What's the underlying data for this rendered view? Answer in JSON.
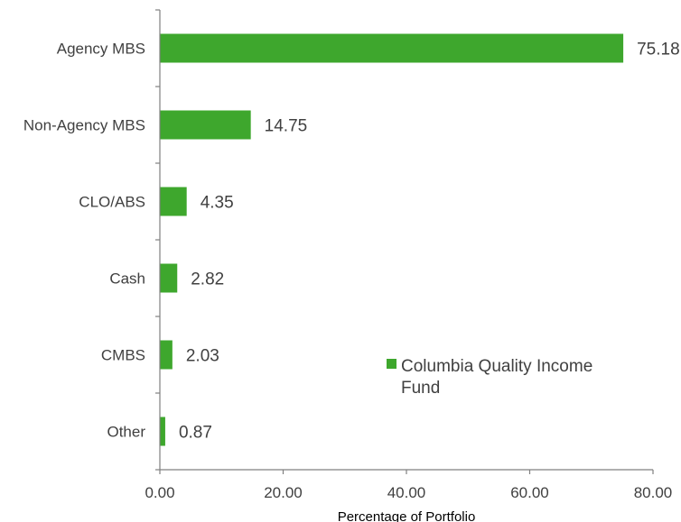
{
  "chart_data": {
    "type": "bar",
    "orientation": "horizontal",
    "categories": [
      "Agency MBS",
      "Non-Agency MBS",
      "CLO/ABS",
      "Cash",
      "CMBS",
      "Other"
    ],
    "series": [
      {
        "name": "Columbia Quality Income Fund",
        "values": [
          75.18,
          14.75,
          4.35,
          2.82,
          2.03,
          0.87
        ],
        "value_labels": [
          "75.18",
          "14.75",
          "4.35",
          "2.82",
          "2.03",
          "0.87"
        ],
        "color": "#3ea72d"
      }
    ],
    "xlabel": "Percentage of Portfolio",
    "ylabel": "",
    "xlim": [
      0,
      80
    ],
    "x_ticks": [
      0,
      20,
      40,
      60,
      80
    ],
    "x_tick_labels": [
      "0.00",
      "20.00",
      "40.00",
      "60.00",
      "80.00"
    ],
    "grid": false,
    "legend_position": "lower-right inside plot",
    "legend_lines": [
      "Columbia Quality Income",
      "Fund"
    ]
  }
}
